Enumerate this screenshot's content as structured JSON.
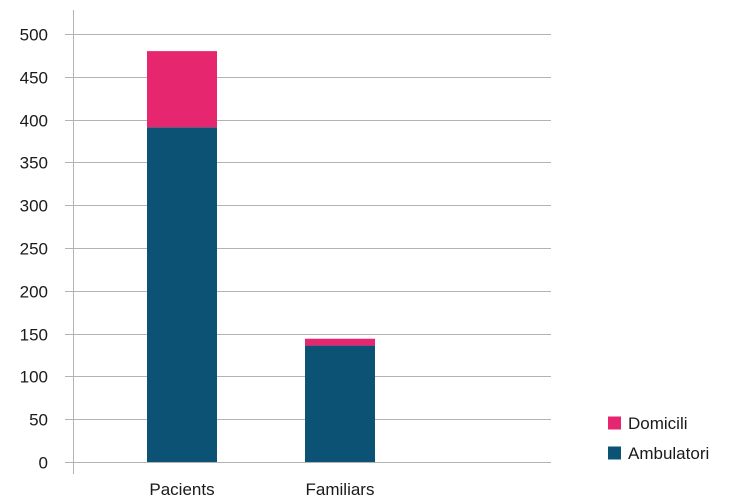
{
  "chart_data": {
    "type": "bar",
    "stacked": true,
    "title": "",
    "xlabel": "",
    "ylabel": "",
    "categories": [
      "Pacients",
      "Familiars"
    ],
    "series": [
      {
        "name": "Ambulatori",
        "color": "#0b5274",
        "values": [
          391,
          136
        ]
      },
      {
        "name": "Domicili",
        "color": "#e6266f",
        "values": [
          89,
          8
        ]
      }
    ],
    "ylim": [
      0,
      500
    ],
    "yticks": [
      "0",
      "50",
      "100",
      "150",
      "200",
      "250",
      "300",
      "350",
      "400",
      "450",
      "500"
    ],
    "grid": true,
    "legend": {
      "placement": "bottom-right",
      "order": [
        "Domicili",
        "Ambulatori"
      ]
    }
  }
}
